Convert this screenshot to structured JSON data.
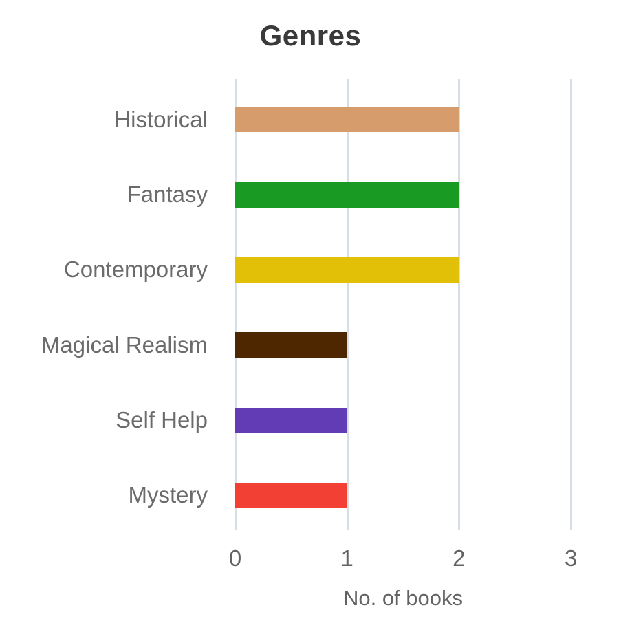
{
  "chart_data": {
    "type": "bar",
    "orientation": "horizontal",
    "title": "Genres",
    "xlabel": "No. of books",
    "ylabel": "",
    "categories": [
      "Historical",
      "Fantasy",
      "Contemporary",
      "Magical Realism",
      "Self Help",
      "Mystery"
    ],
    "values": [
      2,
      2,
      2,
      1,
      1,
      1
    ],
    "bar_colors": [
      "#d69c6c",
      "#189a23",
      "#e2c008",
      "#4e2700",
      "#623cb4",
      "#f24034"
    ],
    "xlim": [
      0,
      3
    ],
    "xticks": [
      0,
      1,
      2,
      3
    ],
    "grid": true,
    "legend": false
  },
  "colors": {
    "title_text": "#3a3a3a",
    "axis_text": "#636363",
    "category_text": "#6b6b6b",
    "gridline": "#d7dee5",
    "background": "#ffffff"
  }
}
